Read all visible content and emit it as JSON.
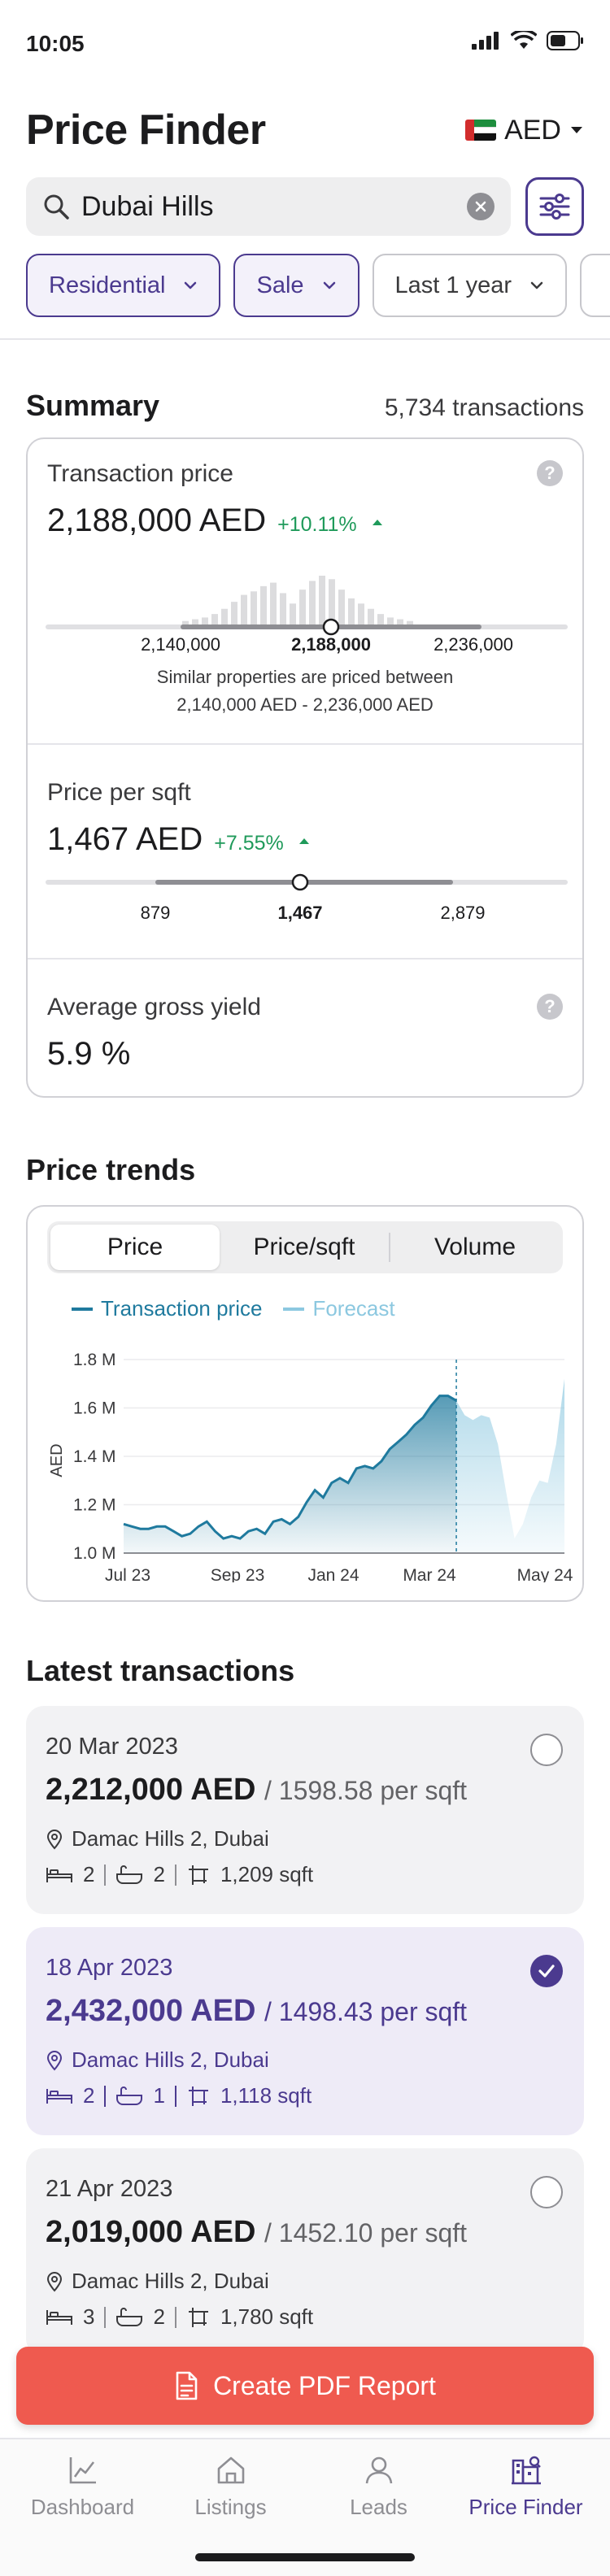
{
  "status_bar": {
    "time": "10:05"
  },
  "header": {
    "title": "Price Finder",
    "currency": "AED",
    "flag": "uae-flag-icon"
  },
  "search": {
    "value": "Dubai Hills"
  },
  "filters": [
    {
      "label": "Residential",
      "active": true
    },
    {
      "label": "Sale",
      "active": true
    },
    {
      "label": "Last 1 year",
      "active": false
    }
  ],
  "summary": {
    "title": "Summary",
    "count": "5,734 transactions",
    "transaction_price": {
      "label": "Transaction price",
      "value": "2,188,000 AED",
      "change": "+10.11%",
      "range_low": "2,140,000",
      "range_mid": "2,188,000",
      "range_high": "2,236,000",
      "note_line1": "Similar properties are priced between",
      "note_line2": "2,140,000 AED - 2,236,000 AED",
      "histogram": [
        2,
        3,
        4,
        6,
        9,
        13,
        17,
        19,
        22,
        24,
        18,
        12,
        20,
        25,
        28,
        26,
        20,
        15,
        12,
        9,
        6,
        4,
        3,
        2
      ]
    },
    "price_per_sqft": {
      "label": "Price per sqft",
      "value": "1,467 AED",
      "change": "+7.55%",
      "range_low": "879",
      "range_mid": "1,467",
      "range_high": "2,879"
    },
    "gross_yield": {
      "label": "Average gross yield",
      "value": "5.9 %"
    }
  },
  "trends": {
    "title": "Price trends",
    "tabs": [
      "Price",
      "Price/sqft",
      "Volume"
    ],
    "active_tab": "Price",
    "legend": {
      "actual": "Transaction price",
      "forecast": "Forecast"
    }
  },
  "chart_data": {
    "type": "area",
    "ylabel": "AED",
    "y_ticks": [
      "1.8 M",
      "1.6 M",
      "1.4 M",
      "1.2 M",
      "1.0 M"
    ],
    "ylim": [
      1.0,
      1.8
    ],
    "x_ticks": [
      "Jul 23",
      "Sep 23",
      "Jan 24",
      "Mar 24",
      "May 24"
    ],
    "colors": {
      "actual": "#1f7a9e",
      "forecast": "#8cc8e0"
    },
    "series": [
      {
        "name": "Transaction price",
        "values": [
          1.12,
          1.11,
          1.1,
          1.1,
          1.11,
          1.11,
          1.09,
          1.07,
          1.08,
          1.11,
          1.13,
          1.09,
          1.06,
          1.07,
          1.06,
          1.09,
          1.1,
          1.08,
          1.13,
          1.14,
          1.12,
          1.15,
          1.21,
          1.26,
          1.23,
          1.29,
          1.31,
          1.29,
          1.35,
          1.36,
          1.35,
          1.38,
          1.43,
          1.46,
          1.49,
          1.53,
          1.56,
          1.61,
          1.65,
          1.65,
          1.63
        ]
      },
      {
        "name": "Forecast",
        "values": [
          1.63,
          1.57,
          1.55,
          1.57,
          1.56,
          1.45,
          1.25,
          1.06,
          1.12,
          1.23,
          1.3,
          1.29,
          1.45,
          1.72
        ]
      }
    ]
  },
  "latest": {
    "title": "Latest transactions",
    "items": [
      {
        "date": "20 Mar 2023",
        "price": "2,212,000 AED",
        "psqft": "/ 1598.58 per sqft",
        "location": "Damac Hills 2, Dubai",
        "beds": "2",
        "baths": "2",
        "area": "1,209 sqft",
        "selected": false
      },
      {
        "date": "18 Apr 2023",
        "price": "2,432,000 AED",
        "psqft": "/ 1498.43 per sqft",
        "location": "Damac Hills 2, Dubai",
        "beds": "2",
        "baths": "1",
        "area": "1,118 sqft",
        "selected": true
      },
      {
        "date": "21 Apr 2023",
        "price": "2,019,000 AED",
        "psqft": "/ 1452.10 per sqft",
        "location": "Damac Hills 2, Dubai",
        "beds": "3",
        "baths": "2",
        "area": "1,780 sqft",
        "selected": false
      }
    ]
  },
  "cta": {
    "label": "Create PDF Report"
  },
  "tabbar": [
    {
      "label": "Dashboard",
      "icon": "chart-line-icon"
    },
    {
      "label": "Listings",
      "icon": "home-icon"
    },
    {
      "label": "Leads",
      "icon": "person-icon"
    },
    {
      "label": "Price Finder",
      "icon": "buildings-search-icon",
      "active": true
    }
  ]
}
